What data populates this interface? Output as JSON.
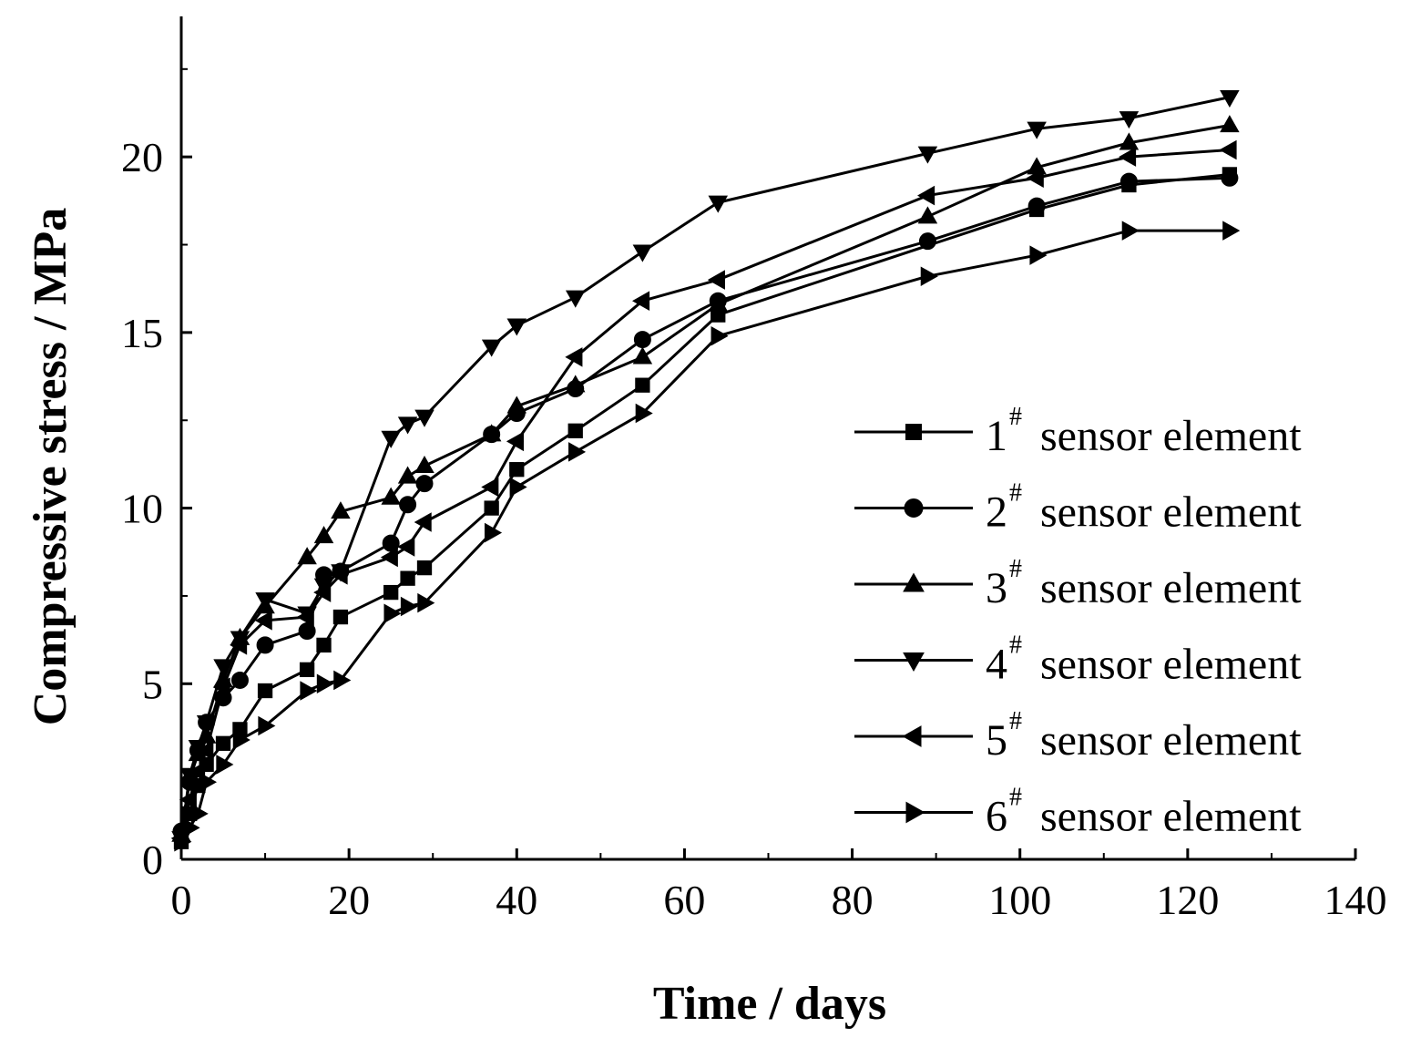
{
  "chart_data": {
    "type": "line",
    "title": "",
    "xlabel": "Time / days",
    "ylabel": "Compressive stress / MPa",
    "xlim": [
      0,
      140
    ],
    "ylim": [
      0,
      24
    ],
    "xticks": [
      0,
      20,
      40,
      60,
      80,
      100,
      120,
      140
    ],
    "yticks": [
      0,
      5,
      10,
      15,
      20
    ],
    "grid": false,
    "legend_position": "bottom-right",
    "series": [
      {
        "name": "1# sensor element",
        "num": "1",
        "sup": "#",
        "suffix": "sensor element",
        "marker": "square",
        "x": [
          0,
          1,
          2,
          3,
          5,
          7,
          10,
          15,
          17,
          19,
          25,
          27,
          29,
          37,
          40,
          47,
          55,
          64,
          102,
          113,
          125
        ],
        "y": [
          0.5,
          1.3,
          2.1,
          2.7,
          3.3,
          3.7,
          4.8,
          5.4,
          6.1,
          6.9,
          7.6,
          8.0,
          8.3,
          10.0,
          11.1,
          12.2,
          13.5,
          15.5,
          18.5,
          19.2,
          19.5
        ]
      },
      {
        "name": "2# sensor element",
        "num": "2",
        "sup": "#",
        "suffix": "sensor element",
        "marker": "circle",
        "x": [
          0,
          1,
          2,
          3,
          5,
          7,
          10,
          15,
          17,
          19,
          25,
          27,
          29,
          37,
          40,
          47,
          55,
          64,
          89,
          102,
          113,
          125
        ],
        "y": [
          0.8,
          2.2,
          3.1,
          3.9,
          4.6,
          5.1,
          6.1,
          6.5,
          8.1,
          8.2,
          9.0,
          10.1,
          10.7,
          12.1,
          12.7,
          13.4,
          14.8,
          15.9,
          17.6,
          18.6,
          19.3,
          19.4
        ]
      },
      {
        "name": "3# sensor element",
        "num": "3",
        "sup": "#",
        "suffix": "sensor element",
        "marker": "triangle-up",
        "x": [
          0,
          1,
          2,
          3,
          5,
          7,
          10,
          15,
          17,
          19,
          25,
          27,
          29,
          37,
          40,
          47,
          55,
          64,
          89,
          102,
          113,
          125
        ],
        "y": [
          0.7,
          2.3,
          3.0,
          3.5,
          5.1,
          6.3,
          7.2,
          8.6,
          9.2,
          9.9,
          10.3,
          10.9,
          11.2,
          12.1,
          12.9,
          13.5,
          14.3,
          15.8,
          18.3,
          19.7,
          20.4,
          20.9
        ]
      },
      {
        "name": "4# sensor element",
        "num": "4",
        "sup": "#",
        "suffix": "sensor element",
        "marker": "triangle-down",
        "x": [
          0,
          1,
          2,
          3,
          5,
          7,
          10,
          15,
          17,
          19,
          25,
          27,
          29,
          37,
          40,
          47,
          55,
          64,
          89,
          102,
          113,
          125
        ],
        "y": [
          0.6,
          2.4,
          3.2,
          3.9,
          5.5,
          6.3,
          7.4,
          7.0,
          7.8,
          8.2,
          12.0,
          12.4,
          12.6,
          14.6,
          15.2,
          16.0,
          17.3,
          18.7,
          20.1,
          20.8,
          21.1,
          21.7
        ]
      },
      {
        "name": "5# sensor element",
        "num": "5",
        "sup": "#",
        "suffix": "sensor element",
        "marker": "triangle-left",
        "x": [
          0,
          1,
          2,
          3,
          5,
          7,
          10,
          15,
          17,
          19,
          25,
          27,
          29,
          37,
          40,
          47,
          55,
          64,
          89,
          102,
          113,
          125
        ],
        "y": [
          0.6,
          1.7,
          2.5,
          3.1,
          4.9,
          6.1,
          6.8,
          6.9,
          7.6,
          8.1,
          8.6,
          8.9,
          9.6,
          10.6,
          11.9,
          14.3,
          15.9,
          16.5,
          18.9,
          19.4,
          20.0,
          20.2
        ]
      },
      {
        "name": "6# sensor element",
        "num": "6",
        "sup": "#",
        "suffix": "sensor element",
        "marker": "triangle-right",
        "x": [
          0,
          1,
          2,
          3,
          5,
          7,
          10,
          15,
          17,
          19,
          25,
          27,
          29,
          37,
          40,
          47,
          55,
          64,
          89,
          102,
          113,
          125
        ],
        "y": [
          0.5,
          0.9,
          1.3,
          2.2,
          2.7,
          3.4,
          3.8,
          4.8,
          5.0,
          5.1,
          7.0,
          7.2,
          7.3,
          9.3,
          10.6,
          11.6,
          12.7,
          14.9,
          16.6,
          17.2,
          17.9,
          17.9
        ]
      }
    ]
  }
}
